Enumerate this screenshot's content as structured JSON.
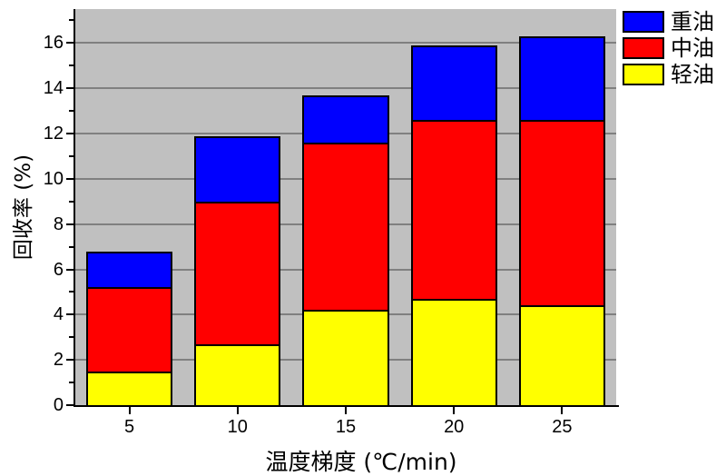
{
  "chart_data": {
    "type": "bar",
    "stacked": true,
    "title": "",
    "xlabel": "温度梯度 (℃/min)",
    "ylabel": "回收率 (%)",
    "categories": [
      5,
      10,
      15,
      20,
      25
    ],
    "x_tick_labels": [
      "5",
      "10",
      "15",
      "20",
      "25"
    ],
    "series": [
      {
        "name": "轻油",
        "color": "#FFFF00",
        "values": [
          1.5,
          2.7,
          4.2,
          4.7,
          4.4
        ]
      },
      {
        "name": "中油",
        "color": "#FF0000",
        "values": [
          3.7,
          6.3,
          7.4,
          7.9,
          8.2
        ]
      },
      {
        "name": "重油",
        "color": "#0000FF",
        "values": [
          1.6,
          2.9,
          2.1,
          3.3,
          3.7
        ]
      }
    ],
    "stack_tops": {
      "轻油": [
        1.5,
        2.7,
        4.2,
        4.7,
        4.4
      ],
      "中油": [
        5.2,
        9.0,
        11.6,
        12.6,
        12.6
      ],
      "重油": [
        6.8,
        11.9,
        13.7,
        15.9,
        16.3
      ]
    },
    "totals": [
      6.8,
      11.9,
      13.7,
      15.9,
      16.3
    ],
    "xlim": [
      2.5,
      27.5
    ],
    "ylim": [
      0,
      17.5
    ],
    "bar_width_units": 4,
    "y_major_ticks": [
      0,
      2,
      4,
      6,
      8,
      10,
      12,
      14,
      16
    ],
    "y_minor_ticks": [
      1,
      3,
      5,
      7,
      9,
      11,
      13,
      15,
      17
    ],
    "grid": "horizontal-major-only",
    "legend": {
      "position": "top-right",
      "entries": [
        {
          "label": "重油",
          "color": "#0000FF"
        },
        {
          "label": "中油",
          "color": "#FF0000"
        },
        {
          "label": "轻油",
          "color": "#FFFF00"
        }
      ]
    },
    "colors": {
      "plot_bg": "#C0C0C0",
      "gridline": "#808080",
      "axis": "#000000",
      "bar_border": "#000000",
      "page_bg": "#FFFFFF"
    }
  }
}
